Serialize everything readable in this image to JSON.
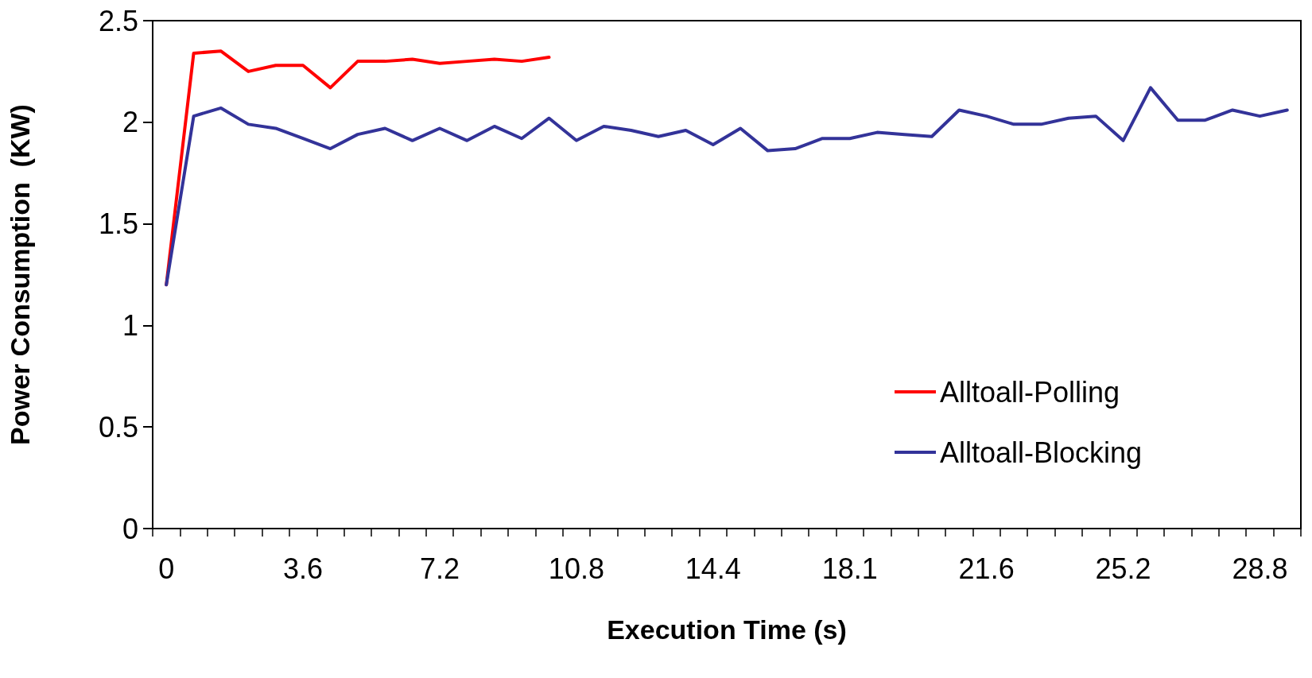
{
  "chart_data": {
    "type": "line",
    "xlabel": "Execution Time (s)",
    "ylabel": "Power Consumption  (KW)",
    "categories": [
      "0",
      null,
      null,
      null,
      null,
      "3.6",
      null,
      null,
      null,
      null,
      "7.2",
      null,
      null,
      null,
      null,
      "10.8",
      null,
      null,
      null,
      null,
      "14.4",
      null,
      null,
      null,
      null,
      "18.1",
      null,
      null,
      null,
      null,
      "21.6",
      null,
      null,
      null,
      null,
      "25.2",
      null,
      null,
      null,
      null,
      "28.8",
      null
    ],
    "series": [
      {
        "name": "Alltoall-Polling",
        "color": "#ff0000",
        "values": [
          1.2,
          2.34,
          2.35,
          2.25,
          2.28,
          2.28,
          2.17,
          2.3,
          2.3,
          2.31,
          2.29,
          2.3,
          2.31,
          2.3,
          2.32,
          null,
          null,
          null,
          null,
          null,
          null,
          null,
          null,
          null,
          null,
          null,
          null,
          null,
          null,
          null,
          null,
          null,
          null,
          null,
          null,
          null,
          null,
          null,
          null,
          null,
          null,
          null
        ]
      },
      {
        "name": "Alltoall-Blocking",
        "color": "#333399",
        "values": [
          1.2,
          2.03,
          2.07,
          1.99,
          1.97,
          1.92,
          1.87,
          1.94,
          1.97,
          1.91,
          1.97,
          1.91,
          1.98,
          1.92,
          2.02,
          1.91,
          1.98,
          1.96,
          1.93,
          1.96,
          1.89,
          1.97,
          1.86,
          1.87,
          1.92,
          1.92,
          1.95,
          1.94,
          1.93,
          2.06,
          2.03,
          1.99,
          1.99,
          2.02,
          2.03,
          1.91,
          2.17,
          2.01,
          2.01,
          2.06,
          2.03,
          2.06
        ]
      }
    ],
    "ylim": [
      0,
      2.5
    ],
    "yticks": [
      0,
      0.5,
      1,
      1.5,
      2,
      2.5
    ],
    "grid": false,
    "legend": "right",
    "marker": "none",
    "line_style": "solid"
  }
}
